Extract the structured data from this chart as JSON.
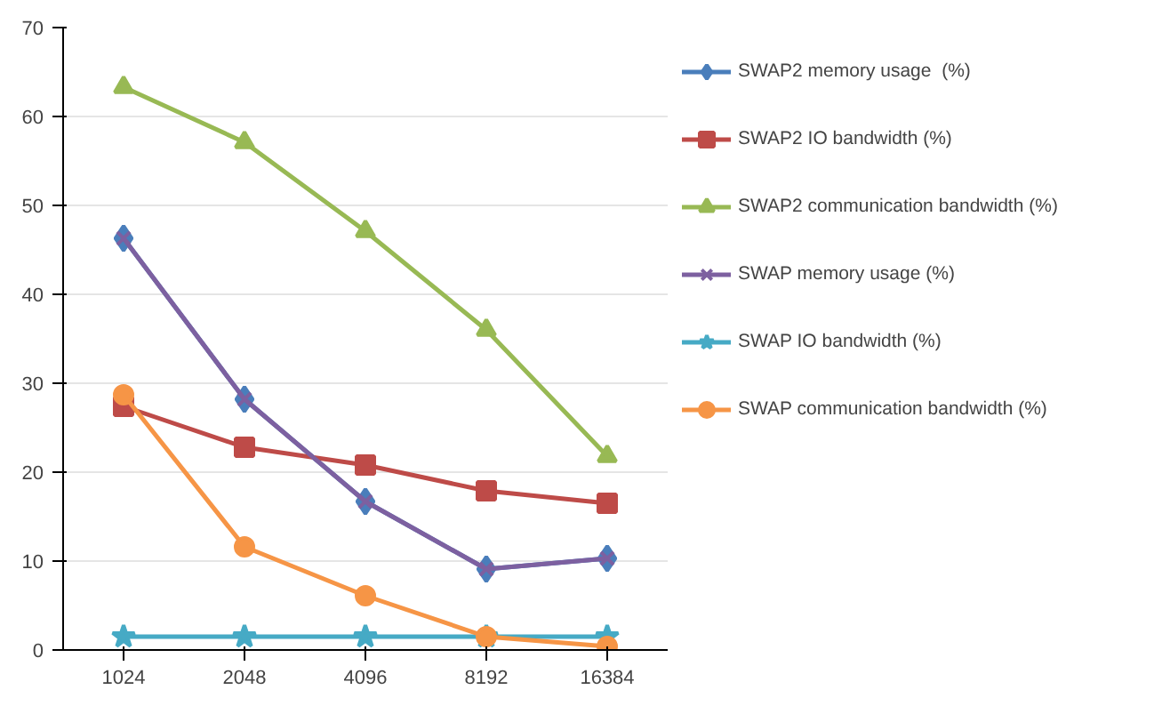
{
  "chart_data": {
    "type": "line",
    "categories": [
      "1024",
      "2048",
      "4096",
      "8192",
      "16384"
    ],
    "ylim": [
      0,
      70
    ],
    "yticks": [
      0,
      10,
      20,
      30,
      40,
      50,
      60,
      70
    ],
    "grid": "y",
    "legend": "right",
    "series": [
      {
        "name": "SWAP2 memory usage  (%)",
        "color": "#4a7ebb",
        "marker": "diamond",
        "values": [
          46.3,
          28.2,
          16.7,
          9.1,
          10.3
        ]
      },
      {
        "name": "SWAP2 IO bandwidth (%)",
        "color": "#be4b48",
        "marker": "square",
        "values": [
          27.4,
          22.8,
          20.8,
          17.9,
          16.5
        ]
      },
      {
        "name": "SWAP2 communication bandwidth (%)",
        "color": "#98b954",
        "marker": "triangle",
        "values": [
          63.3,
          57.1,
          47.1,
          36.0,
          21.8
        ]
      },
      {
        "name": "SWAP memory usage (%)",
        "color": "#7d60a0",
        "marker": "cross",
        "values": [
          46.3,
          28.2,
          16.7,
          9.1,
          10.3
        ]
      },
      {
        "name": "SWAP IO bandwidth (%)",
        "color": "#46aac5",
        "marker": "star",
        "values": [
          1.5,
          1.5,
          1.5,
          1.5,
          1.5
        ]
      },
      {
        "name": "SWAP communication bandwidth (%)",
        "color": "#f69546",
        "marker": "circle",
        "values": [
          28.7,
          11.6,
          6.1,
          1.5,
          0.4
        ]
      }
    ]
  }
}
